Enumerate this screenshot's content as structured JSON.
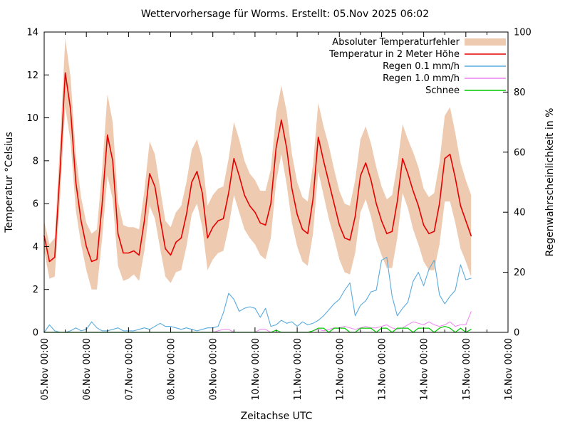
{
  "title": "Wettervorhersage für Worms. Erstellt: 05.Nov 2025 06:02",
  "chart_data": {
    "type": "line",
    "x_label": "Zeitachse UTC",
    "x_start_label": "05.Nov 00:00",
    "x_step_hours": 3,
    "x_total_hours": 264,
    "x_tick_labels": [
      "05.Nov 00:00",
      "06.Nov 00:00",
      "07.Nov 00:00",
      "08.Nov 00:00",
      "09.Nov 00:00",
      "10.Nov 00:00",
      "11.Nov 00:00",
      "12.Nov 00:00",
      "13.Nov 00:00",
      "14.Nov 00:00",
      "15.Nov 00:00",
      "16.Nov 00:00"
    ],
    "y_left": {
      "label": "Temperatur °Celsius",
      "min": 0,
      "max": 14,
      "ticks": [
        0,
        2,
        4,
        6,
        8,
        10,
        12,
        14
      ]
    },
    "y_right": {
      "label": "Regenwahrscheinlichkeit in %",
      "min": 0,
      "max": 100,
      "ticks": [
        0,
        20,
        40,
        60,
        80,
        100
      ]
    },
    "band": {
      "name": "Absoluter Temperaturfehler",
      "color": "#eecab1",
      "half_width": [
        0.7,
        0.8,
        0.9,
        1.3,
        1.6,
        1.5,
        1.3,
        1.1,
        1.1,
        1.3,
        1.4,
        1.6,
        1.9,
        1.8,
        1.5,
        1.3,
        1.2,
        1.1,
        1.2,
        1.4,
        1.5,
        1.5,
        1.4,
        1.3,
        1.3,
        1.4,
        1.5,
        1.5,
        1.5,
        1.5,
        1.6,
        1.5,
        1.5,
        1.5,
        1.5,
        1.6,
        1.7,
        1.7,
        1.6,
        1.5,
        1.5,
        1.5,
        1.6,
        1.6,
        1.6,
        1.6,
        1.7,
        1.6,
        1.5,
        1.5,
        1.5,
        1.6,
        1.6,
        1.6,
        1.7,
        1.6,
        1.6,
        1.6,
        1.6,
        1.7,
        1.7,
        1.7,
        1.7,
        1.7,
        1.6,
        1.6,
        1.7,
        1.7,
        1.6,
        1.6,
        1.8,
        1.8,
        1.7,
        1.7,
        1.8,
        1.9,
        2.0,
        2.2,
        2.1,
        2.0,
        1.9,
        1.9
      ]
    },
    "series": [
      {
        "name": "Temperatur in 2 Meter Höhe",
        "axis": "left",
        "color": "#e60000",
        "width": 1.6,
        "values": [
          4.5,
          3.3,
          3.5,
          7.5,
          12.1,
          10.4,
          7.0,
          5.2,
          4.0,
          3.3,
          3.4,
          6.0,
          9.2,
          8.0,
          4.6,
          3.7,
          3.7,
          3.8,
          3.6,
          5.2,
          7.4,
          6.8,
          5.3,
          3.9,
          3.6,
          4.2,
          4.4,
          5.5,
          7.0,
          7.5,
          6.5,
          4.4,
          4.9,
          5.2,
          5.3,
          6.5,
          8.1,
          7.3,
          6.4,
          5.9,
          5.6,
          5.1,
          5.0,
          6.0,
          8.6,
          9.9,
          8.6,
          6.7,
          5.5,
          4.8,
          4.6,
          6.2,
          9.1,
          8.0,
          7.0,
          6.0,
          5.0,
          4.4,
          4.3,
          5.4,
          7.3,
          7.9,
          7.1,
          6.0,
          5.2,
          4.6,
          4.7,
          6.1,
          8.1,
          7.4,
          6.6,
          5.9,
          5.0,
          4.6,
          4.7,
          6.0,
          8.1,
          8.3,
          7.2,
          5.9,
          5.2,
          4.5
        ]
      },
      {
        "name": "Regen 0.1 mm/h",
        "axis": "right",
        "color": "#5aabdd",
        "width": 1.1,
        "values": [
          0,
          2.5,
          0.5,
          0,
          0,
          0.5,
          1.5,
          0.5,
          1,
          3.5,
          1.5,
          0.5,
          0.5,
          1,
          1.5,
          0.5,
          0.5,
          0.5,
          1,
          1.5,
          1,
          2,
          3,
          2,
          2,
          1.5,
          1,
          1.5,
          1,
          0.5,
          1,
          1.5,
          1.5,
          2,
          6.5,
          13,
          11,
          7,
          8,
          8.5,
          8,
          5,
          8,
          2,
          2.5,
          4,
          3,
          3.5,
          2,
          3.5,
          2.5,
          3,
          4,
          5.5,
          7.5,
          9.5,
          11,
          14,
          16.5,
          5.5,
          9,
          10.5,
          13.5,
          14,
          24,
          25,
          12,
          5.5,
          8,
          10,
          17,
          20,
          15.5,
          21,
          24,
          12.5,
          9.5,
          12,
          14,
          22.5,
          17.5,
          18
        ]
      },
      {
        "name": "Regen 1.0 mm/h",
        "axis": "right",
        "color": "#ee82ee",
        "width": 1.0,
        "values": [
          0,
          0,
          0,
          0,
          0,
          0,
          0,
          0,
          0,
          0,
          0,
          0,
          0,
          0,
          0,
          0,
          0,
          0,
          0,
          0,
          0,
          0,
          0,
          0,
          0,
          0,
          0,
          0,
          0,
          0,
          0,
          0,
          0,
          0.5,
          1,
          1,
          0,
          0,
          0,
          0,
          0,
          1,
          1,
          0,
          0,
          0,
          0,
          0,
          0,
          0,
          0,
          0.5,
          1,
          0.5,
          1,
          1.5,
          1.5,
          2,
          1.5,
          1,
          1.5,
          2,
          1.5,
          1.5,
          2,
          2.5,
          1.5,
          1,
          1.5,
          2.5,
          3.5,
          3,
          2.5,
          3.5,
          2.5,
          2,
          2.5,
          3.5,
          2,
          2.5,
          2.5,
          6.9
        ]
      },
      {
        "name": "Schnee",
        "axis": "right",
        "color": "#00c800",
        "width": 1.2,
        "values": [
          0,
          0,
          0,
          0,
          0,
          0,
          0,
          0,
          0,
          0,
          0,
          0,
          0,
          0,
          0,
          0,
          0,
          0,
          0,
          0,
          0,
          0,
          0,
          0,
          0,
          0,
          0,
          0,
          0,
          0,
          0,
          0,
          0,
          0,
          0,
          0,
          0,
          0,
          0,
          0,
          0,
          0,
          0,
          0,
          0.7,
          0,
          0,
          0,
          0,
          0,
          0,
          0.5,
          1.4,
          1.4,
          0,
          1.4,
          1.4,
          1.4,
          0,
          0,
          1.4,
          1.4,
          1.4,
          0,
          1.4,
          1.4,
          0,
          1.4,
          1.4,
          1.4,
          0,
          1.4,
          1.4,
          1.4,
          0,
          1.4,
          2,
          1.4,
          0,
          1.4,
          0,
          1
        ]
      }
    ]
  }
}
